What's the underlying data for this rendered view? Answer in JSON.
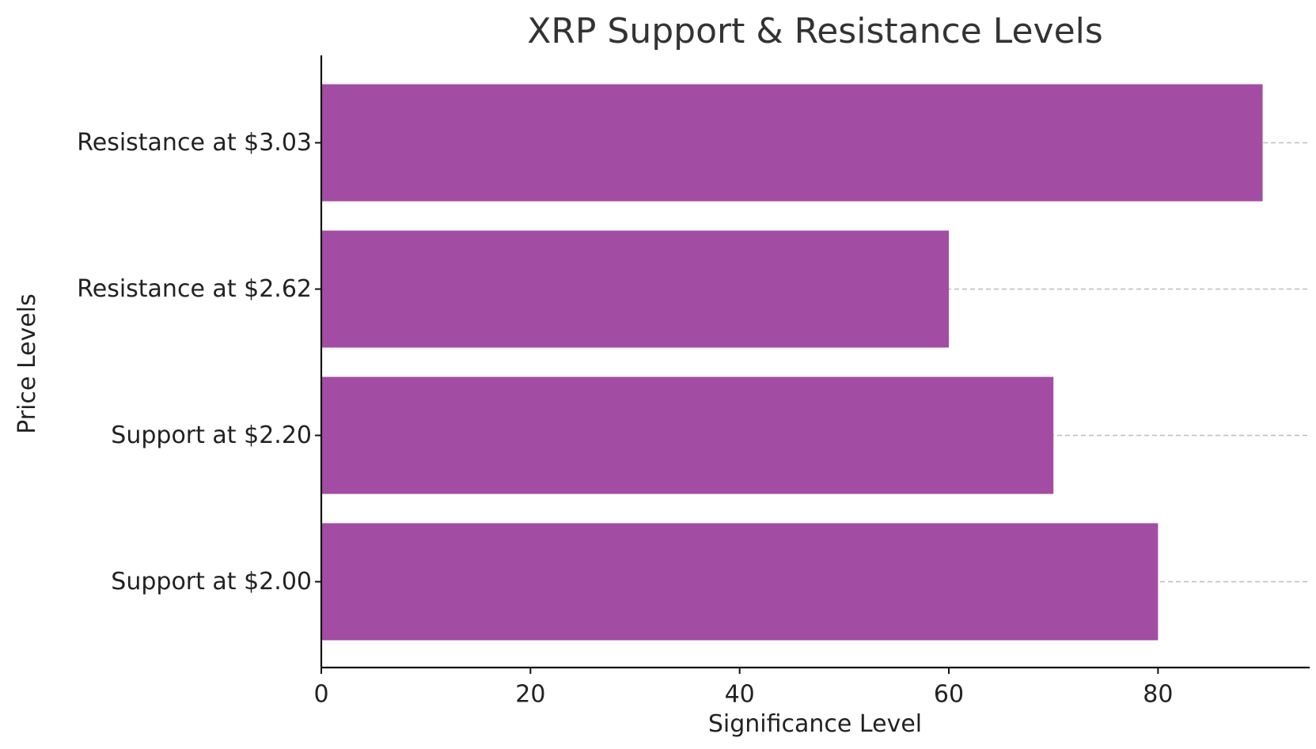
{
  "chart_data": {
    "type": "bar",
    "orientation": "horizontal",
    "title": "XRP Support & Resistance Levels",
    "xlabel": "Significance Level",
    "ylabel": "Price Levels",
    "categories": [
      "Support at $2.00",
      "Support at $2.20",
      "Resistance at $2.62",
      "Resistance at $3.03"
    ],
    "values": [
      80,
      70,
      60,
      90
    ],
    "xlim": [
      0,
      94.5
    ],
    "xticks": [
      0,
      20,
      40,
      60,
      80
    ],
    "bar_color": "#a34ca3",
    "grid": "horizontal dashed",
    "legend": "none"
  }
}
